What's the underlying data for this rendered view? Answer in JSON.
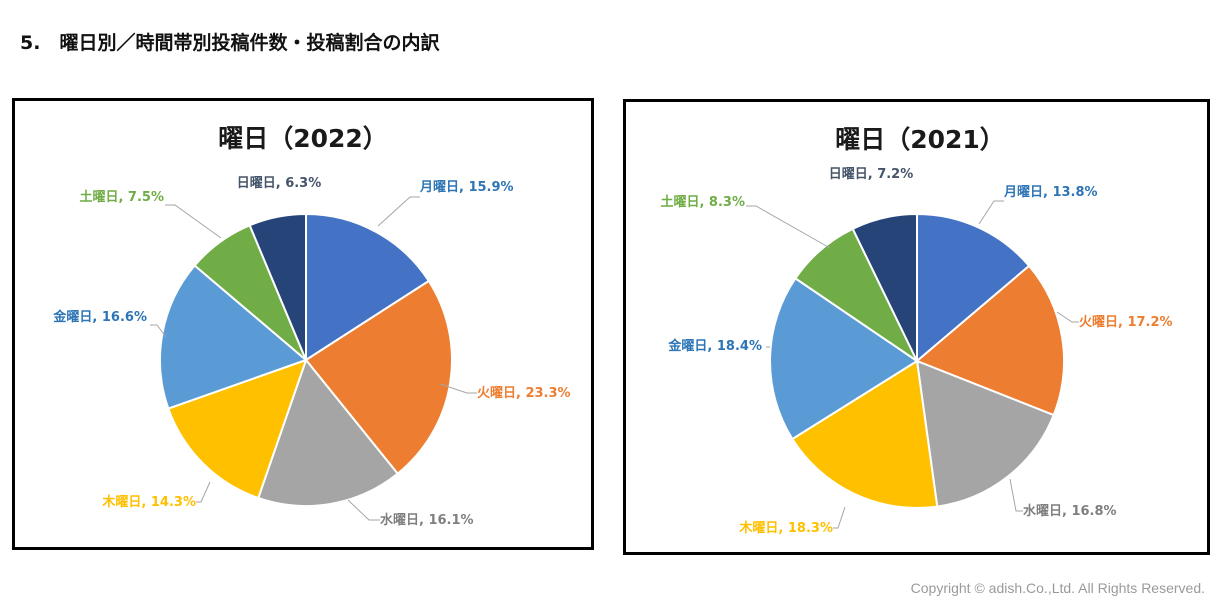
{
  "page": {
    "heading": "5.　曜日別／時間帯別投稿件数・投稿割合の内訳",
    "copyright": "Copyright © adish.Co.,Ltd.  All Rights Reserved."
  },
  "chart_data": [
    {
      "type": "pie",
      "title": "曜日（2022）",
      "categories": [
        "月曜日",
        "火曜日",
        "水曜日",
        "木曜日",
        "金曜日",
        "土曜日",
        "日曜日"
      ],
      "values": [
        15.9,
        23.3,
        16.1,
        14.3,
        16.6,
        7.5,
        6.3
      ],
      "labels": [
        "月曜日, 15.9%",
        "火曜日, 23.3%",
        "水曜日, 16.1%",
        "木曜日, 14.3%",
        "金曜日, 16.6%",
        "土曜日, 7.5%",
        "日曜日, 6.3%"
      ],
      "colors": [
        "#4472C4",
        "#ED7D31",
        "#A5A5A5",
        "#FFC000",
        "#5B9BD5",
        "#70AD47",
        "#264478"
      ],
      "label_colors": [
        "#2E75B6",
        "#ED7D31",
        "#7F7F7F",
        "#FFC000",
        "#2E75B6",
        "#70AD47",
        "#44546A"
      ],
      "start_angle_deg": 0,
      "direction": "clockwise"
    },
    {
      "type": "pie",
      "title": "曜日（2021）",
      "categories": [
        "月曜日",
        "火曜日",
        "水曜日",
        "木曜日",
        "金曜日",
        "土曜日",
        "日曜日"
      ],
      "values": [
        13.8,
        17.2,
        16.8,
        18.3,
        18.4,
        8.3,
        7.2
      ],
      "labels": [
        "月曜日, 13.8%",
        "火曜日, 17.2%",
        "水曜日, 16.8%",
        "木曜日, 18.3%",
        "金曜日, 18.4%",
        "土曜日, 8.3%",
        "日曜日, 7.2%"
      ],
      "colors": [
        "#4472C4",
        "#ED7D31",
        "#A5A5A5",
        "#FFC000",
        "#5B9BD5",
        "#70AD47",
        "#264478"
      ],
      "label_colors": [
        "#2E75B6",
        "#ED7D31",
        "#7F7F7F",
        "#FFC000",
        "#2E75B6",
        "#70AD47",
        "#44546A"
      ],
      "start_angle_deg": 0,
      "direction": "clockwise"
    }
  ]
}
